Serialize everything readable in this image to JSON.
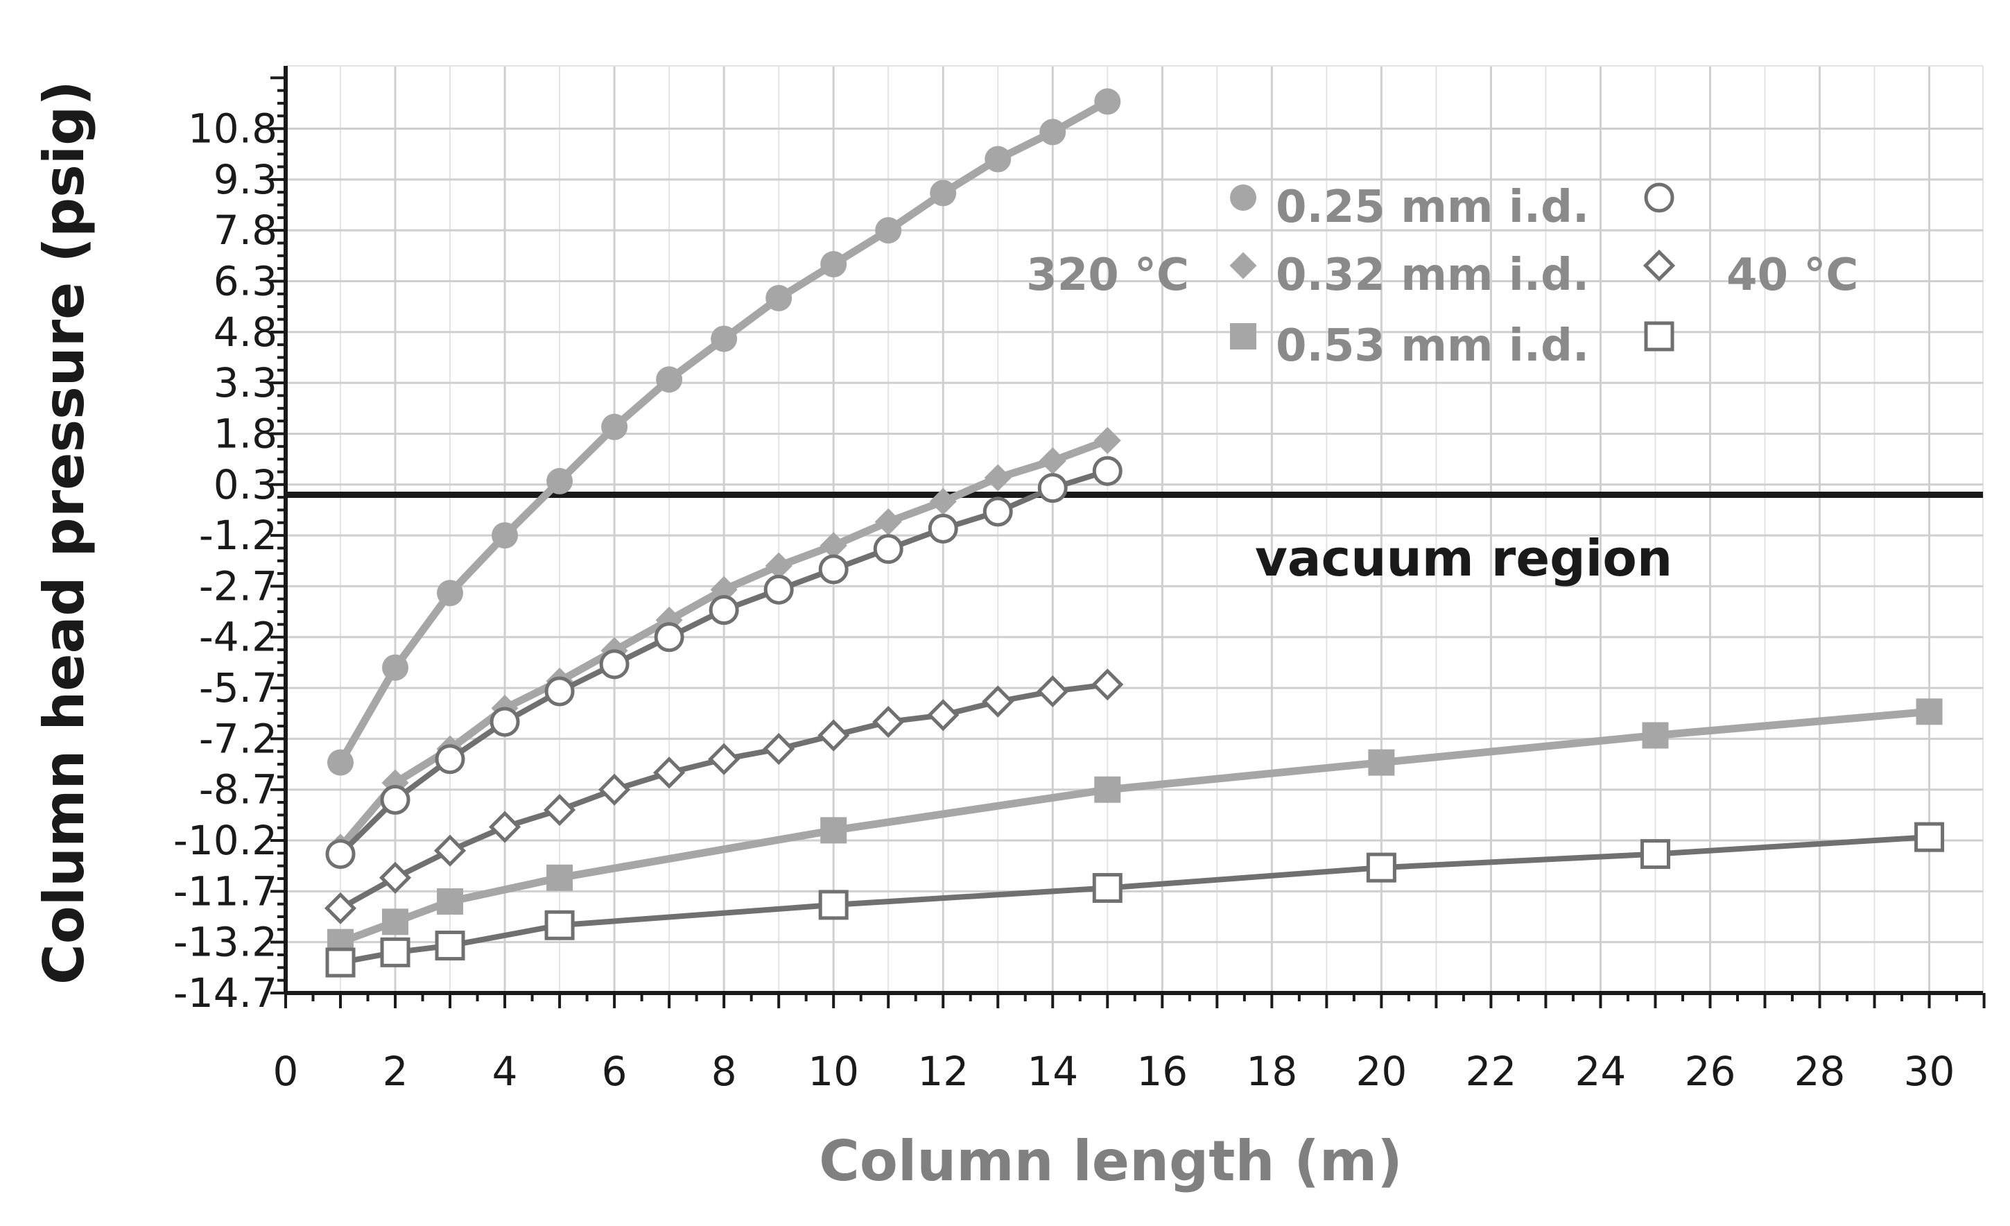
{
  "chart_data": {
    "type": "line",
    "title": "",
    "xlabel": "Column length (m)",
    "ylabel": "Column head pressure (psig)",
    "xlim": [
      0,
      30
    ],
    "ylim": [
      -14.7,
      11.6
    ],
    "x_ticks": [
      0,
      2,
      4,
      6,
      8,
      10,
      12,
      14,
      16,
      18,
      20,
      22,
      24,
      26,
      28,
      30
    ],
    "y_ticks": [
      -14.7,
      -13.2,
      -11.7,
      -10.2,
      -8.7,
      -7.2,
      -5.7,
      -4.2,
      -2.7,
      -1.2,
      0.3,
      1.8,
      3.3,
      4.8,
      6.3,
      7.8,
      9.3,
      10.8
    ],
    "reference_line_y": 0,
    "grid": true,
    "legend": {
      "left_label": "320 °C",
      "right_label": "40 °C",
      "entries": [
        "0.25 mm i.d.",
        "0.32 mm i.d.",
        "0.53 mm i.d."
      ],
      "placement": "top-right"
    },
    "annotations": [
      {
        "text": "vacuum region",
        "x": 18,
        "y": -1.8
      }
    ],
    "series": [
      {
        "id": "d025_320",
        "legend_index": 0,
        "temperature": "320 °C",
        "marker": "circle-filled",
        "color": "#a6a6a6",
        "x": [
          1,
          2,
          3,
          4,
          5,
          6,
          7,
          8,
          9,
          10,
          11,
          12,
          13,
          14,
          15
        ],
        "y": [
          -7.9,
          -5.1,
          -2.9,
          -1.2,
          0.4,
          2.0,
          3.4,
          4.6,
          5.8,
          6.8,
          7.8,
          8.9,
          9.9,
          10.7,
          11.6
        ]
      },
      {
        "id": "d032_320",
        "legend_index": 1,
        "temperature": "320 °C",
        "marker": "diamond-filled",
        "color": "#a6a6a6",
        "x": [
          1,
          2,
          3,
          4,
          5,
          6,
          7,
          8,
          9,
          10,
          11,
          12,
          13,
          14,
          15
        ],
        "y": [
          -10.4,
          -8.5,
          -7.5,
          -6.3,
          -5.5,
          -4.6,
          -3.7,
          -2.8,
          -2.1,
          -1.5,
          -0.8,
          -0.2,
          0.5,
          1.0,
          1.6
        ]
      },
      {
        "id": "d025_40",
        "legend_index": 0,
        "temperature": "40 °C",
        "marker": "circle-open",
        "color": "#707070",
        "x": [
          1,
          2,
          3,
          4,
          5,
          6,
          7,
          8,
          9,
          10,
          11,
          12,
          13,
          14,
          15
        ],
        "y": [
          -10.6,
          -9.0,
          -7.8,
          -6.7,
          -5.8,
          -5.0,
          -4.2,
          -3.4,
          -2.8,
          -2.2,
          -1.6,
          -1.0,
          -0.5,
          0.2,
          0.7
        ]
      },
      {
        "id": "d032_40",
        "legend_index": 1,
        "temperature": "40 °C",
        "marker": "diamond-open",
        "color": "#707070",
        "x": [
          1,
          2,
          3,
          4,
          5,
          6,
          7,
          8,
          9,
          10,
          11,
          12,
          13,
          14,
          15
        ],
        "y": [
          -12.2,
          -11.3,
          -10.5,
          -9.8,
          -9.3,
          -8.7,
          -8.2,
          -7.8,
          -7.5,
          -7.1,
          -6.7,
          -6.5,
          -6.1,
          -5.8,
          -5.6
        ]
      },
      {
        "id": "d053_320",
        "legend_index": 2,
        "temperature": "320 °C",
        "marker": "square-filled",
        "color": "#a6a6a6",
        "x": [
          1,
          2,
          3,
          5,
          10,
          15,
          20,
          25,
          30
        ],
        "y": [
          -13.2,
          -12.6,
          -12.0,
          -11.3,
          -9.9,
          -8.7,
          -7.9,
          -7.1,
          -6.4
        ]
      },
      {
        "id": "d053_40",
        "legend_index": 2,
        "temperature": "40 °C",
        "marker": "square-open",
        "color": "#707070",
        "x": [
          1,
          2,
          3,
          5,
          10,
          15,
          20,
          25,
          30
        ],
        "y": [
          -13.8,
          -13.5,
          -13.3,
          -12.7,
          -12.1,
          -11.6,
          -11.0,
          -10.6,
          -10.1
        ]
      }
    ]
  }
}
